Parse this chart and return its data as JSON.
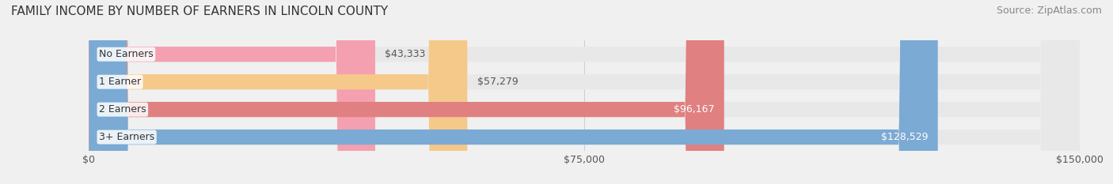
{
  "title": "FAMILY INCOME BY NUMBER OF EARNERS IN LINCOLN COUNTY",
  "source": "Source: ZipAtlas.com",
  "categories": [
    "No Earners",
    "1 Earner",
    "2 Earners",
    "3+ Earners"
  ],
  "values": [
    43333,
    57279,
    96167,
    128529
  ],
  "bar_colors": [
    "#f4a0b0",
    "#f5c98a",
    "#e08080",
    "#7baad4"
  ],
  "label_colors": [
    "#555555",
    "#555555",
    "#ffffff",
    "#ffffff"
  ],
  "xlim": [
    0,
    150000
  ],
  "xtick_values": [
    0,
    75000,
    150000
  ],
  "xtick_labels": [
    "$0",
    "$75,000",
    "$150,000"
  ],
  "background_color": "#f0f0f0",
  "bar_bg_color": "#e8e8e8",
  "title_fontsize": 11,
  "source_fontsize": 9,
  "label_fontsize": 9,
  "tick_fontsize": 9
}
